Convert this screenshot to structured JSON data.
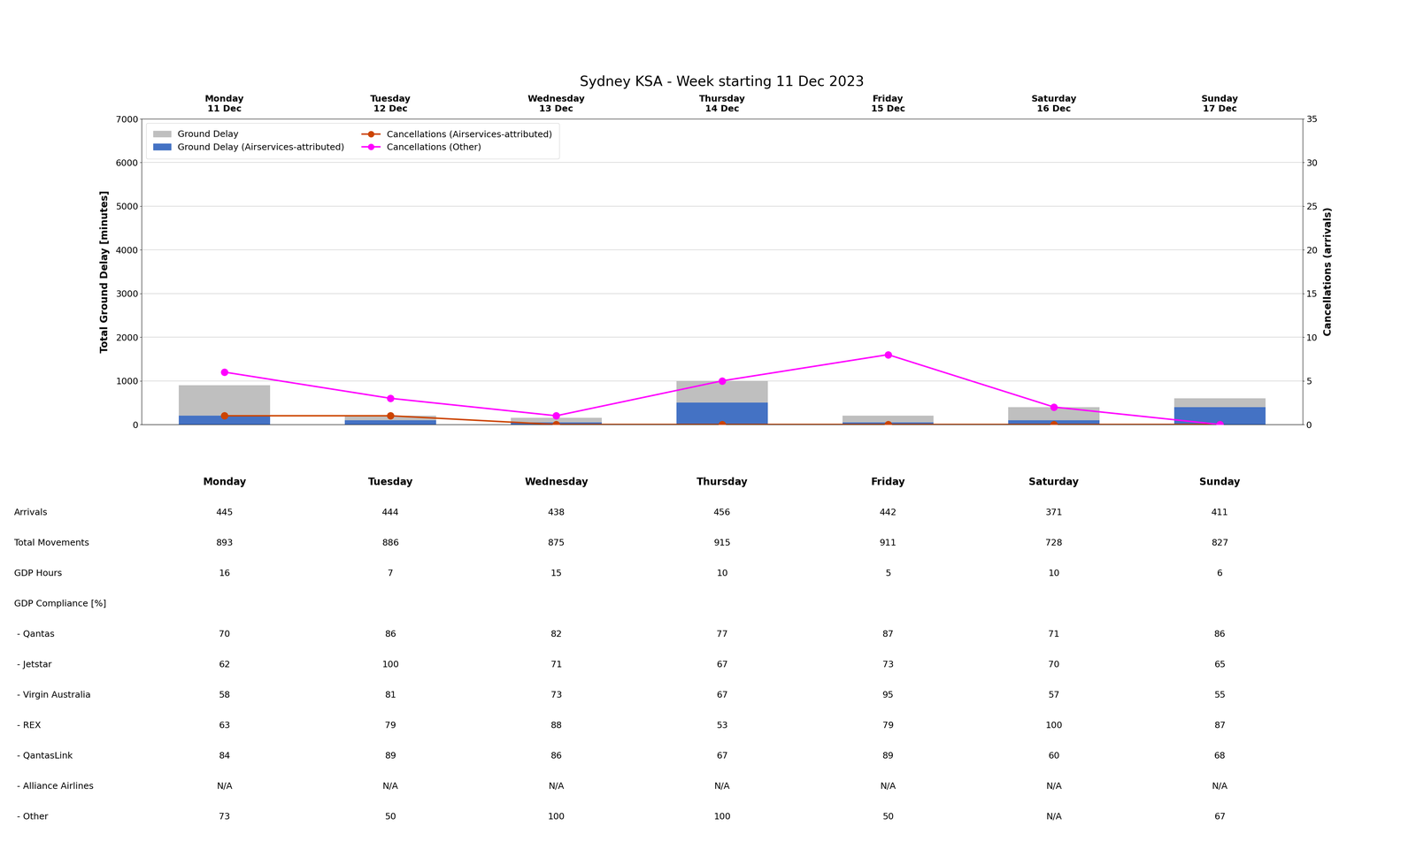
{
  "chart_data": [
    {
      "type": "bar",
      "title": "Sydney KSA - Week starting 11 Dec 2023",
      "categories": [
        "Monday\n11 Dec",
        "Tuesday\n12 Dec",
        "Wednesday\n13 Dec",
        "Thursday\n14 Dec",
        "Friday\n15 Dec",
        "Saturday\n16 Dec",
        "Sunday\n17 Dec"
      ],
      "ylabel": "Total Ground Delay [minutes]",
      "y2label": "Cancellations (arrivals)",
      "ylim": [
        0,
        7000
      ],
      "yticks": [
        0,
        1000,
        2000,
        3000,
        4000,
        5000,
        6000,
        7000
      ],
      "y2lim": [
        0,
        35
      ],
      "y2ticks": [
        0,
        5,
        10,
        15,
        20,
        25,
        30,
        35
      ],
      "grid": true,
      "legend": "upper left",
      "stacked": false,
      "series": [
        {
          "name": "Ground Delay",
          "type": "bar",
          "color": "#bfbfbf",
          "values": [
            900,
            200,
            150,
            1000,
            200,
            400,
            600
          ]
        },
        {
          "name": "Ground Delay (Airservices-attributed)",
          "type": "bar",
          "color": "#4472c4",
          "values": [
            200,
            100,
            50,
            500,
            50,
            100,
            400
          ]
        },
        {
          "name": "Cancellations (Airservices-attributed)",
          "type": "line",
          "axis": "y2",
          "color": "#cc4400",
          "marker": "o",
          "values": [
            1,
            1,
            0,
            0,
            0,
            0,
            0
          ]
        },
        {
          "name": "Cancellations (Other)",
          "type": "line",
          "axis": "y2",
          "color": "#ff00ff",
          "marker": "o",
          "values": [
            6,
            3,
            1,
            5,
            8,
            2,
            0
          ]
        }
      ]
    },
    {
      "type": "table",
      "columns": [
        "Monday",
        "Tuesday",
        "Wednesday",
        "Thursday",
        "Friday",
        "Saturday",
        "Sunday"
      ],
      "rows": [
        "Arrivals",
        "Total Movements",
        "GDP Hours",
        "GDP Compliance [%]",
        " - Qantas",
        " - Jetstar",
        " - Virgin Australia",
        " - REX",
        " - QantasLink",
        " - Alliance Airlines",
        " - Other"
      ],
      "cells": [
        [
          "445",
          "444",
          "438",
          "456",
          "442",
          "371",
          "411"
        ],
        [
          "893",
          "886",
          "875",
          "915",
          "911",
          "728",
          "827"
        ],
        [
          "16",
          "7",
          "15",
          "10",
          "5",
          "10",
          "6"
        ],
        [
          null,
          null,
          null,
          null,
          null,
          null,
          null
        ],
        [
          "70",
          "86",
          "82",
          "77",
          "87",
          "71",
          "86"
        ],
        [
          "62",
          "100",
          "71",
          "67",
          "73",
          "70",
          "65"
        ],
        [
          "58",
          "81",
          "73",
          "67",
          "95",
          "57",
          "55"
        ],
        [
          "63",
          "79",
          "88",
          "53",
          "79",
          "100",
          "87"
        ],
        [
          "84",
          "89",
          "86",
          "67",
          "89",
          "60",
          "68"
        ],
        [
          "N/A",
          "N/A",
          "N/A",
          "N/A",
          "N/A",
          "N/A",
          "N/A"
        ],
        [
          "73",
          "50",
          "100",
          "100",
          "50",
          "N/A",
          "67"
        ]
      ]
    }
  ]
}
